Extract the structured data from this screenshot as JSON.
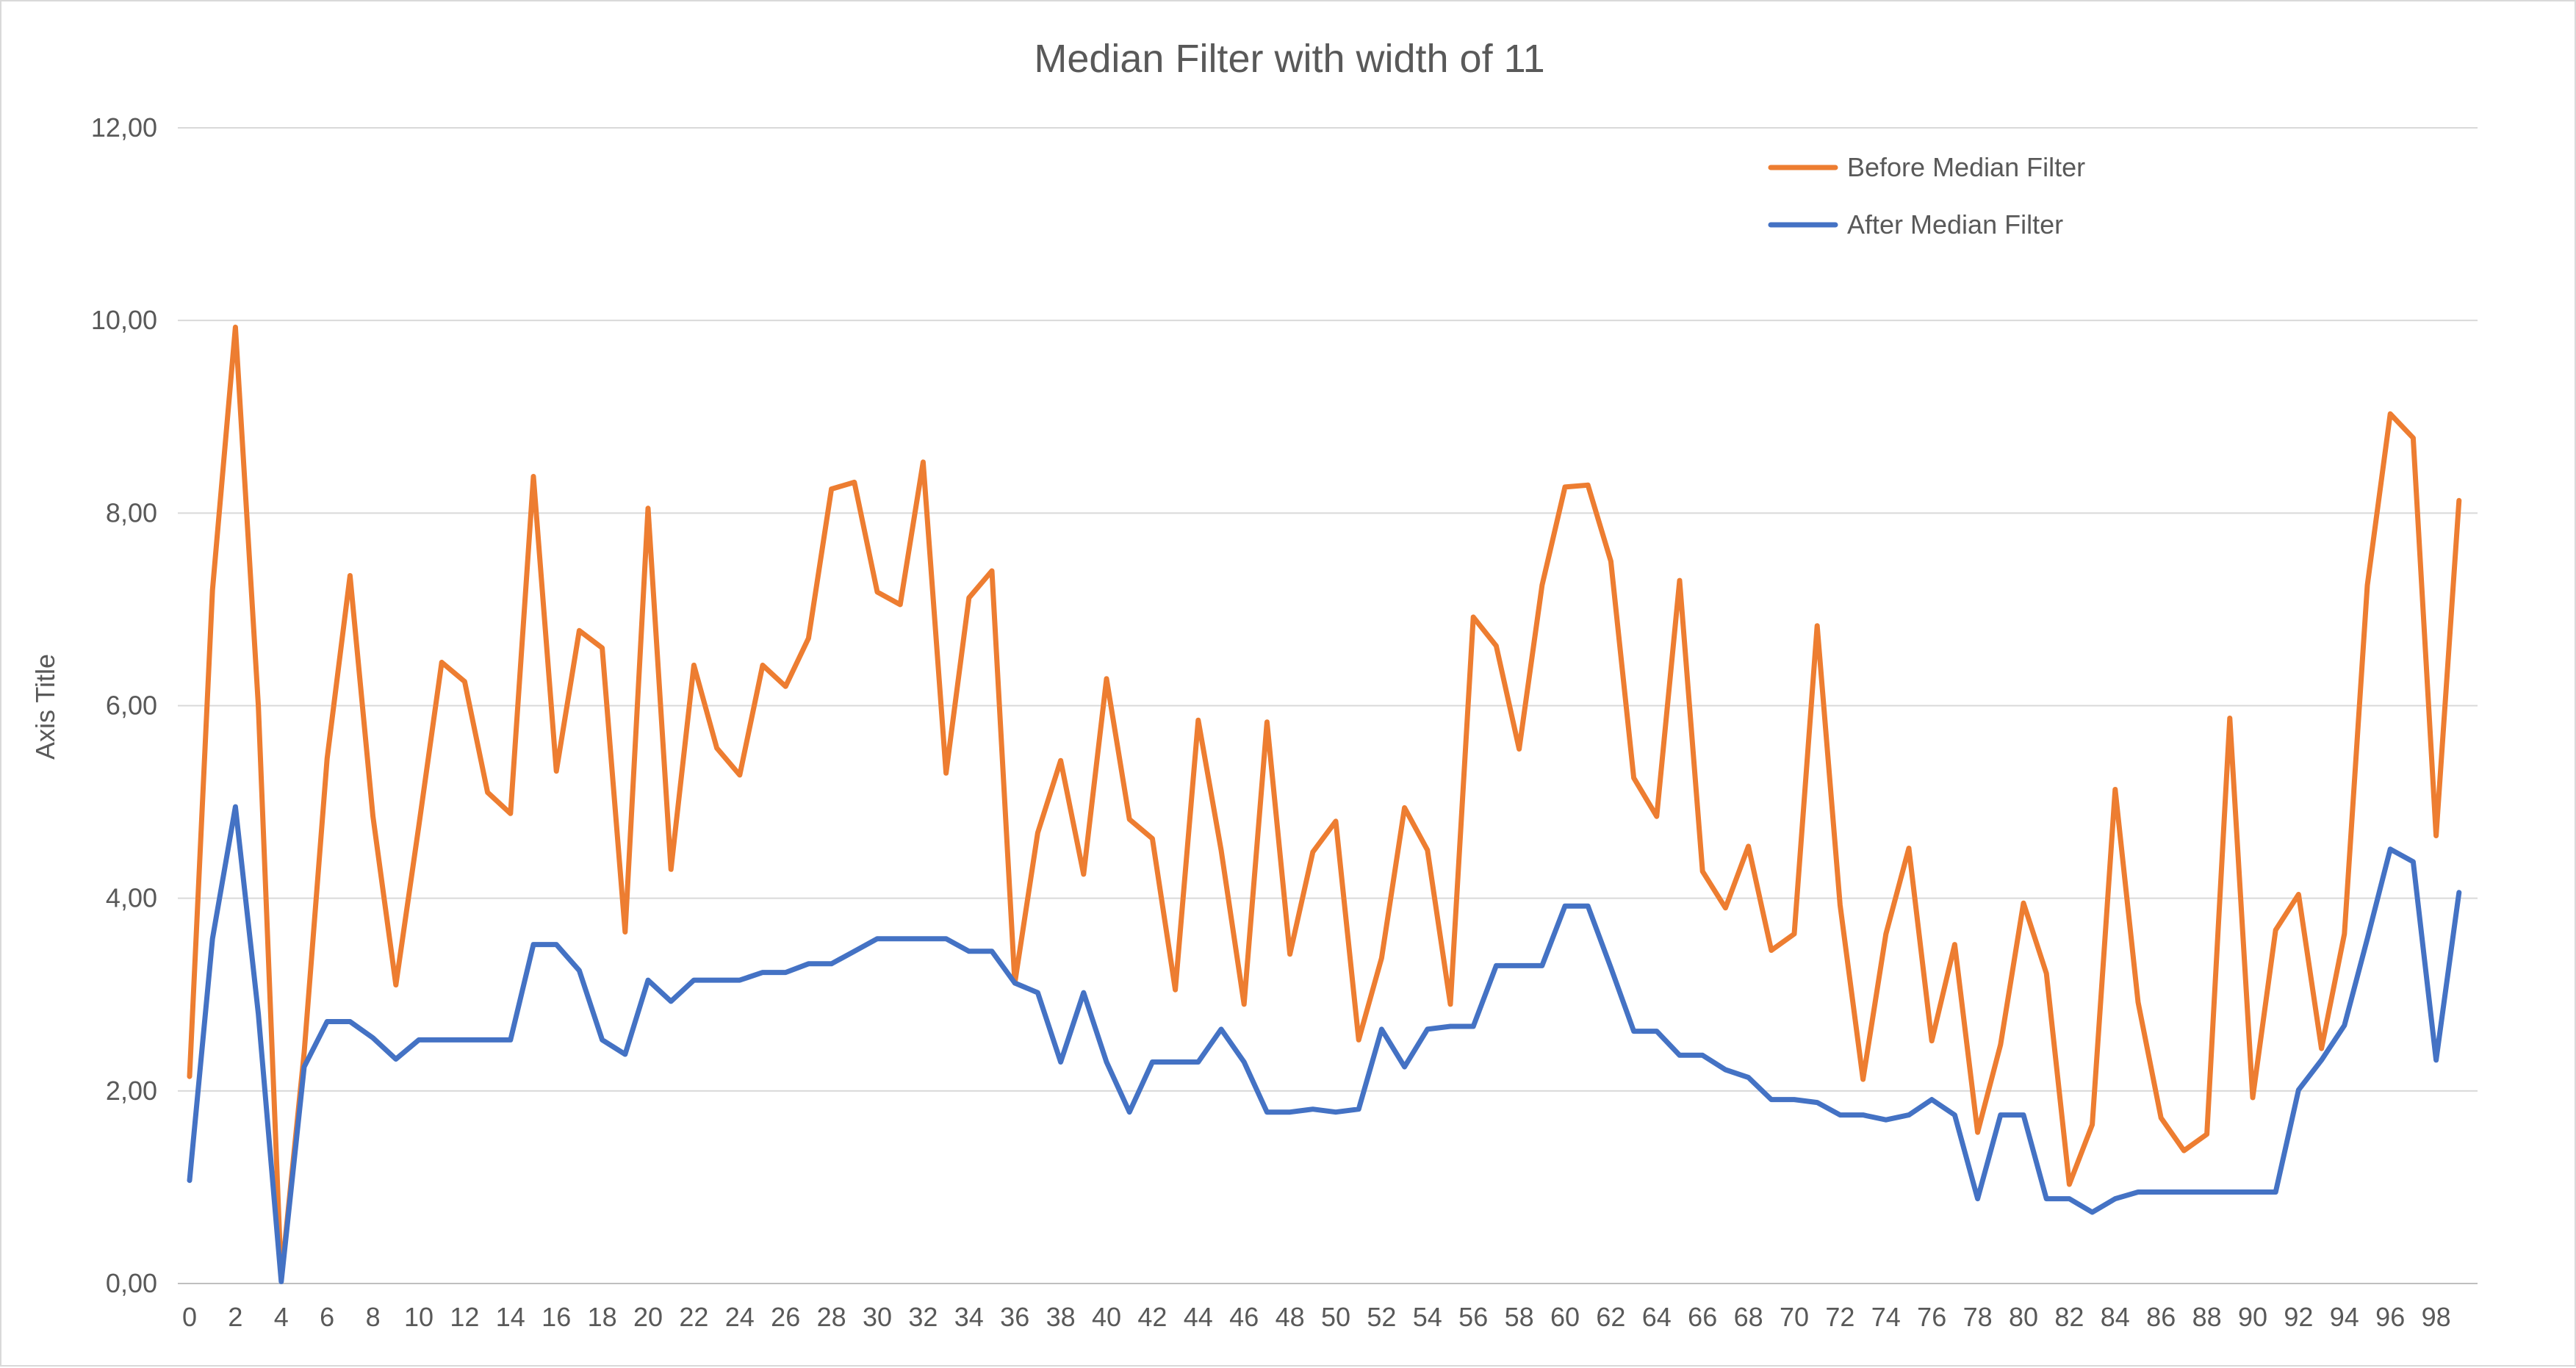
{
  "chart_data": {
    "type": "line",
    "title": "Median Filter with width of 11",
    "xlabel": "",
    "ylabel": "Axis Title",
    "ylim": [
      0,
      12
    ],
    "y_ticks": [
      "0,00",
      "2,00",
      "4,00",
      "6,00",
      "8,00",
      "10,00",
      "12,00"
    ],
    "x": [
      0,
      1,
      2,
      3,
      4,
      5,
      6,
      7,
      8,
      9,
      10,
      11,
      12,
      13,
      14,
      15,
      16,
      17,
      18,
      19,
      20,
      21,
      22,
      23,
      24,
      25,
      26,
      27,
      28,
      29,
      30,
      31,
      32,
      33,
      34,
      35,
      36,
      37,
      38,
      39,
      40,
      41,
      42,
      43,
      44,
      45,
      46,
      47,
      48,
      49,
      50,
      51,
      52,
      53,
      54,
      55,
      56,
      57,
      58,
      59,
      60,
      61,
      62,
      63,
      64,
      65,
      66,
      67,
      68,
      69,
      70,
      71,
      72,
      73,
      74,
      75,
      76,
      77,
      78,
      79,
      80,
      81,
      82,
      83,
      84,
      85,
      86,
      87,
      88,
      89,
      90,
      91,
      92,
      93,
      94,
      95,
      96,
      97,
      98,
      99
    ],
    "x_tick_labels": [
      "0",
      "2",
      "4",
      "6",
      "8",
      "10",
      "12",
      "14",
      "16",
      "18",
      "20",
      "22",
      "24",
      "26",
      "28",
      "30",
      "32",
      "34",
      "36",
      "38",
      "40",
      "42",
      "44",
      "46",
      "48",
      "50",
      "52",
      "54",
      "56",
      "58",
      "60",
      "62",
      "64",
      "66",
      "68",
      "70",
      "72",
      "74",
      "76",
      "78",
      "80",
      "82",
      "84",
      "86",
      "88",
      "90",
      "92",
      "94",
      "96",
      "98"
    ],
    "grid": true,
    "legend_position": "top-right",
    "series": [
      {
        "name": "Before Median Filter",
        "color": "#ed7d31",
        "values": [
          2.15,
          7.2,
          9.93,
          6.0,
          0.05,
          2.4,
          5.45,
          7.35,
          4.85,
          3.1,
          4.75,
          6.45,
          6.25,
          5.1,
          4.88,
          8.38,
          5.32,
          6.78,
          6.6,
          3.65,
          8.05,
          4.3,
          6.42,
          5.56,
          5.28,
          6.42,
          6.2,
          6.7,
          8.25,
          8.32,
          7.18,
          7.05,
          8.53,
          5.3,
          7.12,
          7.4,
          3.12,
          4.68,
          5.43,
          4.25,
          6.28,
          4.82,
          4.62,
          3.05,
          5.85,
          4.5,
          2.9,
          5.83,
          3.42,
          4.48,
          4.8,
          2.53,
          3.38,
          4.94,
          4.5,
          2.9,
          6.92,
          6.62,
          5.55,
          7.25,
          8.27,
          8.29,
          7.5,
          5.25,
          4.85,
          7.3,
          4.28,
          3.9,
          4.54,
          3.46,
          3.63,
          6.83,
          3.93,
          2.12,
          3.63,
          4.52,
          2.52,
          3.52,
          1.57,
          2.48,
          3.95,
          3.22,
          1.03,
          1.65,
          5.13,
          2.92,
          1.72,
          1.38,
          1.55,
          5.87,
          1.93,
          3.67,
          4.04,
          2.44,
          3.63,
          7.25,
          9.03,
          8.78,
          4.65,
          8.13
        ]
      },
      {
        "name": "After Median Filter",
        "color": "#4472c4",
        "values": [
          1.07,
          3.58,
          4.95,
          2.8,
          0.02,
          2.25,
          2.72,
          2.72,
          2.55,
          2.33,
          2.53,
          2.53,
          2.53,
          2.53,
          2.53,
          3.52,
          3.52,
          3.25,
          2.53,
          2.38,
          3.15,
          2.93,
          3.15,
          3.15,
          3.15,
          3.23,
          3.23,
          3.32,
          3.32,
          3.45,
          3.58,
          3.58,
          3.58,
          3.58,
          3.45,
          3.45,
          3.12,
          3.02,
          2.3,
          3.02,
          2.3,
          1.78,
          2.3,
          2.3,
          2.3,
          2.64,
          2.3,
          1.78,
          1.78,
          1.81,
          1.78,
          1.81,
          2.64,
          2.25,
          2.64,
          2.67,
          2.67,
          3.3,
          3.3,
          3.3,
          3.92,
          3.92,
          3.28,
          2.62,
          2.62,
          2.37,
          2.37,
          2.22,
          2.14,
          1.91,
          1.91,
          1.88,
          1.75,
          1.75,
          1.7,
          1.75,
          1.91,
          1.75,
          0.88,
          1.75,
          1.75,
          0.88,
          0.88,
          0.74,
          0.88,
          0.95,
          0.95,
          0.95,
          0.95,
          0.95,
          0.95,
          0.95,
          2.01,
          2.32,
          2.68,
          3.58,
          4.51,
          4.38,
          2.32,
          4.06
        ]
      }
    ]
  }
}
